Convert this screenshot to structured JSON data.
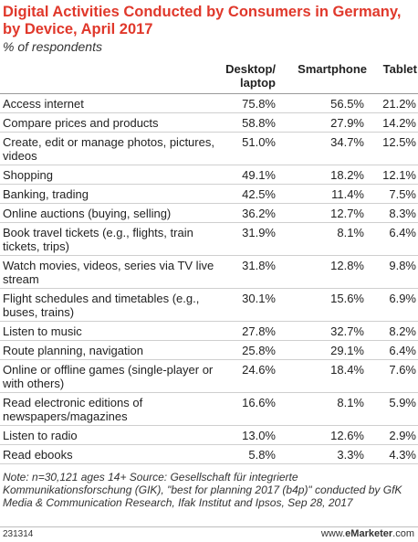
{
  "header": {
    "title": "Digital Activities Conducted by Consumers in Germany, by Device, April 2017",
    "subtitle": "% of respondents"
  },
  "chart_data": {
    "type": "table",
    "title": "Digital Activities Conducted by Consumers in Germany, by Device, April 2017",
    "subtitle": "% of respondents",
    "columns": [
      "Desktop/ laptop",
      "Smartphone",
      "Tablet"
    ],
    "rows": [
      {
        "label": "Access internet",
        "desktop": "75.8%",
        "smartphone": "56.5%",
        "tablet": "21.2%"
      },
      {
        "label": "Compare prices and products",
        "desktop": "58.8%",
        "smartphone": "27.9%",
        "tablet": "14.2%"
      },
      {
        "label": "Create, edit or manage photos, pictures, videos",
        "desktop": "51.0%",
        "smartphone": "34.7%",
        "tablet": "12.5%"
      },
      {
        "label": "Shopping",
        "desktop": "49.1%",
        "smartphone": "18.2%",
        "tablet": "12.1%"
      },
      {
        "label": "Banking, trading",
        "desktop": "42.5%",
        "smartphone": "11.4%",
        "tablet": "7.5%"
      },
      {
        "label": "Online auctions (buying, selling)",
        "desktop": "36.2%",
        "smartphone": "12.7%",
        "tablet": "8.3%"
      },
      {
        "label": "Book travel tickets (e.g., flights, train tickets, trips)",
        "desktop": "31.9%",
        "smartphone": "8.1%",
        "tablet": "6.4%"
      },
      {
        "label": "Watch movies, videos, series via TV live stream",
        "desktop": "31.8%",
        "smartphone": "12.8%",
        "tablet": "9.8%"
      },
      {
        "label": "Flight schedules and timetables (e.g., buses, trains)",
        "desktop": "30.1%",
        "smartphone": "15.6%",
        "tablet": "6.9%"
      },
      {
        "label": "Listen to music",
        "desktop": "27.8%",
        "smartphone": "32.7%",
        "tablet": "8.2%"
      },
      {
        "label": "Route planning, navigation",
        "desktop": "25.8%",
        "smartphone": "29.1%",
        "tablet": "6.4%"
      },
      {
        "label": "Online or offline games (single-player or with others)",
        "desktop": "24.6%",
        "smartphone": "18.4%",
        "tablet": "7.6%"
      },
      {
        "label": "Read electronic editions of newspapers/magazines",
        "desktop": "16.6%",
        "smartphone": "8.1%",
        "tablet": "5.9%"
      },
      {
        "label": "Listen to radio",
        "desktop": "13.0%",
        "smartphone": "12.6%",
        "tablet": "2.9%"
      },
      {
        "label": "Read ebooks",
        "desktop": "5.8%",
        "smartphone": "3.3%",
        "tablet": "4.3%"
      }
    ]
  },
  "note": "Note: n=30,121 ages 14+ Source: Gesellschaft für integrierte Kommunikationsforschung (GIK), \"best for planning 2017 (b4p)\" conducted by GfK Media & Communication Research, Ifak Institut and Ipsos, Sep 28, 2017",
  "footer": {
    "chart_id": "231314",
    "brand_prefix": "www.",
    "brand_name": "eMarketer",
    "brand_suffix": ".com"
  }
}
